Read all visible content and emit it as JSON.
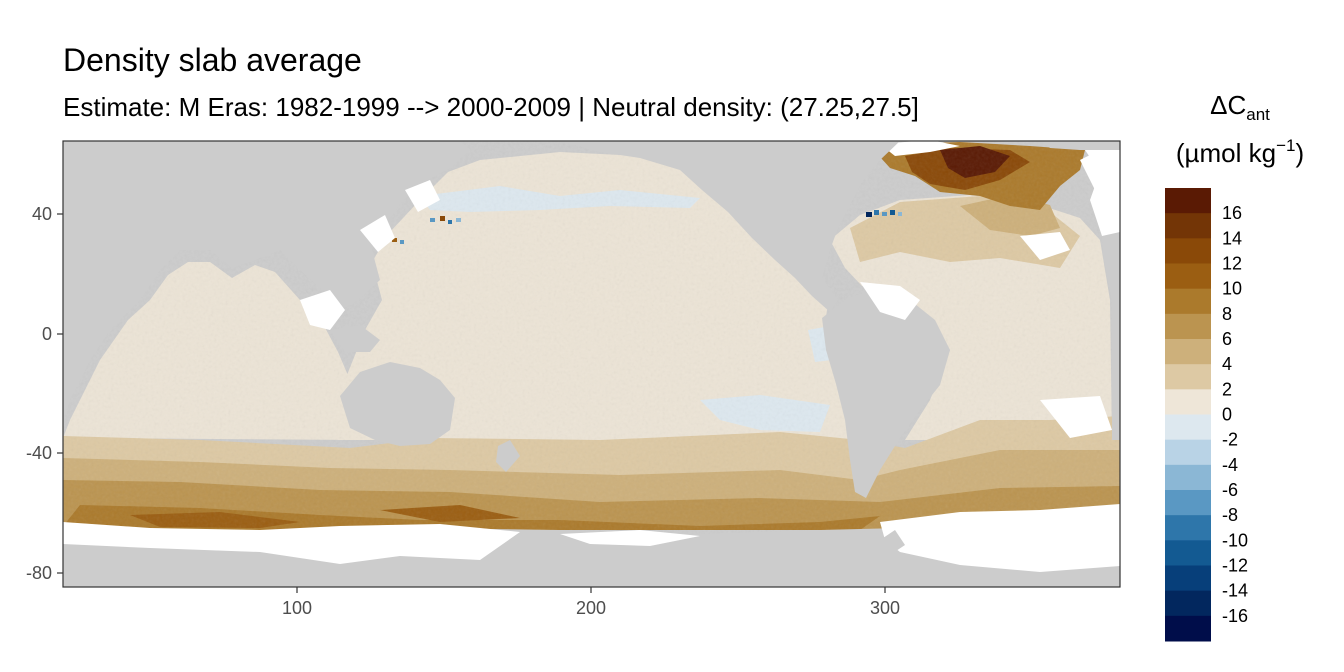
{
  "chart_data": {
    "type": "heatmap",
    "title": "Density slab average",
    "subtitle": "Estimate: M Eras: 1982-1999 --> 2000-2009 | Neutral density: (27.25,27.5]",
    "xlabel": "",
    "ylabel": "",
    "xlim": [
      20,
      380
    ],
    "ylim": [
      -85,
      65
    ],
    "x_ticks": [
      "100",
      "200",
      "300"
    ],
    "y_ticks": [
      "40",
      "0",
      "-40",
      "-80"
    ],
    "grid": false,
    "legend": {
      "title_main": "ΔC",
      "title_sub": "ant",
      "unit_prefix": "(µmol kg",
      "unit_exp": "−1",
      "unit_suffix": ")",
      "placement": "right",
      "labels": [
        "16",
        "14",
        "12",
        "10",
        "8",
        "6",
        "4",
        "2",
        "0",
        "-2",
        "-4",
        "-6",
        "-8",
        "-10",
        "-12",
        "-14",
        "-16"
      ],
      "bin_colors": [
        "#5a1a04",
        "#733506",
        "#8a4908",
        "#9b5e12",
        "#ab7a2c",
        "#bb9450",
        "#cdb07b",
        "#ddc9a4",
        "#eee6d8",
        "#dde8ef",
        "#b9d3e6",
        "#8bb7d5",
        "#5a98c3",
        "#2e76aa",
        "#135a92",
        "#073f7a",
        "#02275e",
        "#000d4a"
      ]
    },
    "colors": {
      "land": "#cccccc",
      "no_data": "#ffffff",
      "panel_border": "#333333"
    }
  }
}
